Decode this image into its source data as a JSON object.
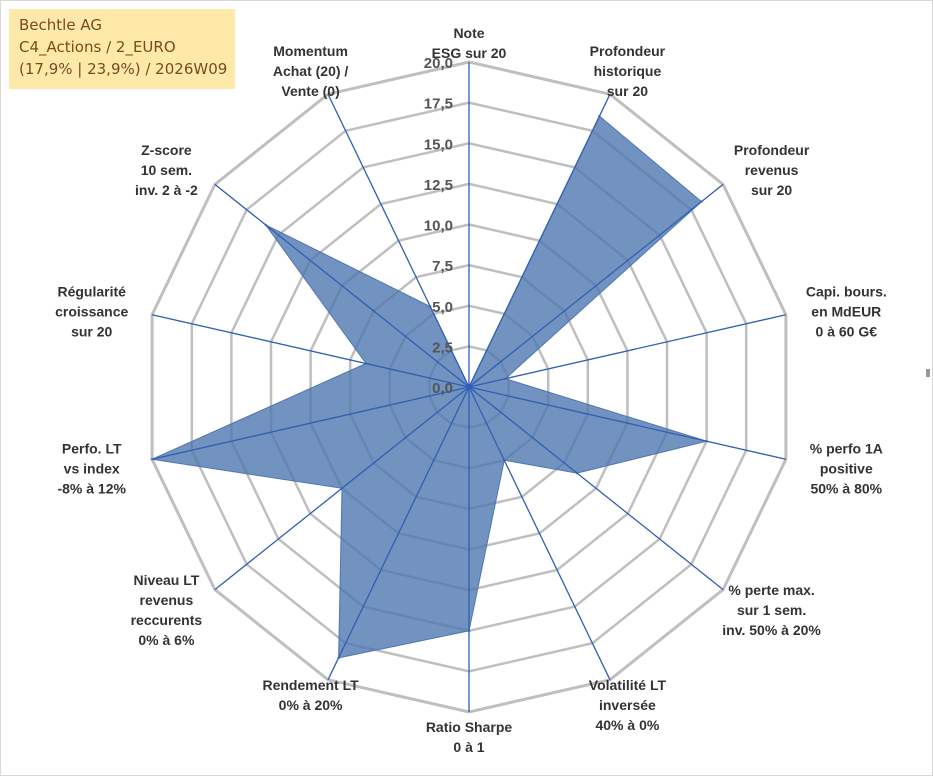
{
  "title_box": {
    "line1": "Bechtle AG",
    "line2": "C4_Actions / 2_EURO",
    "line3": "(17,9% | 23,9%) / 2026W09"
  },
  "colors": {
    "fill": "#4f77b0",
    "spoke": "#2f5fb3",
    "grid": "#bfbfbf",
    "title_bg": "#ffe9a8"
  },
  "chart_data": {
    "type": "radar",
    "max": 20,
    "ticks": [
      "0,0",
      "2,5",
      "5,0",
      "7,5",
      "10,0",
      "12,5",
      "15,0",
      "17,5",
      "20,0"
    ],
    "axes": [
      {
        "label": [
          "Note",
          "ESG sur 20"
        ],
        "value": 0
      },
      {
        "label": [
          "Profondeur",
          "historique",
          "sur 20"
        ],
        "value": 18.5
      },
      {
        "label": [
          "Profondeur",
          "revenus",
          "sur 20"
        ],
        "value": 18.3
      },
      {
        "label": [
          "Capi. bours.",
          "en MdEUR",
          "0 à 60 G€"
        ],
        "value": 2.3
      },
      {
        "label": [
          "% perfo 1A",
          "positive",
          "50% à 80%"
        ],
        "value": 15.0
      },
      {
        "label": [
          "% perte max.",
          "sur 1 sem.",
          "inv. 50% à 20%"
        ],
        "value": 8.5
      },
      {
        "label": [
          "Volatilité LT",
          "inversée",
          "40% à 0%"
        ],
        "value": 5.0
      },
      {
        "label": [
          "Ratio Sharpe",
          "0 à 1"
        ],
        "value": 15.0
      },
      {
        "label": [
          "Rendement LT",
          "0% à 20%"
        ],
        "value": 18.5
      },
      {
        "label": [
          "Niveau LT",
          "revenus",
          "reccurents",
          "0% à 6%"
        ],
        "value": 10.0
      },
      {
        "label": [
          "Perfo. LT",
          "vs index",
          "-8% à 12%"
        ],
        "value": 20.0
      },
      {
        "label": [
          "Régularité",
          "croissance",
          "sur 20"
        ],
        "value": 6.5
      },
      {
        "label": [
          "Z-score",
          "10 sem.",
          "inv. 2 à -2"
        ],
        "value": 16.0
      },
      {
        "label": [
          "Momentum",
          "Achat (20) /",
          "Vente (0)"
        ],
        "value": 5.5
      }
    ]
  }
}
